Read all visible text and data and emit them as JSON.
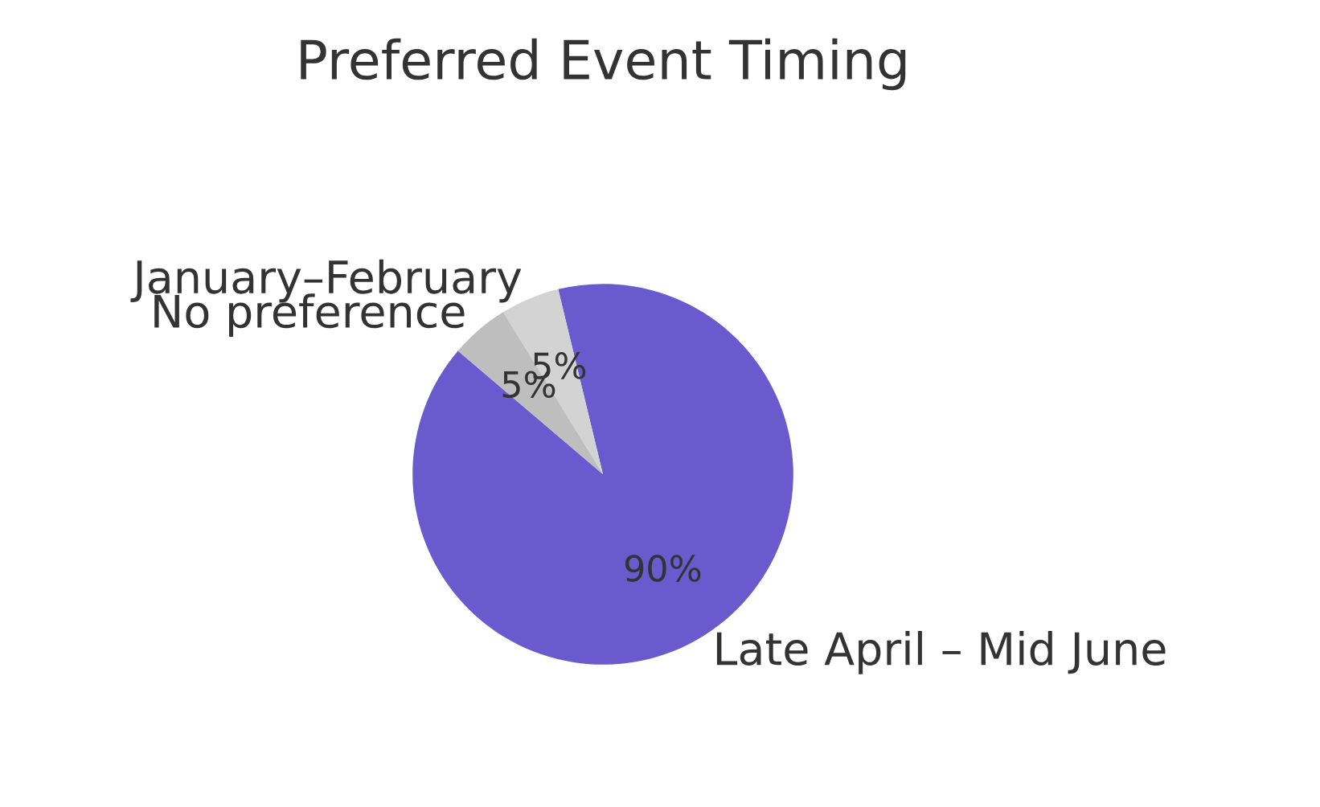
{
  "chart_data": {
    "type": "pie",
    "title": "Preferred Event Timing",
    "categories": [
      "Late April – Mid June",
      "January–February",
      "No preference"
    ],
    "values": [
      90,
      5,
      5
    ],
    "colors": [
      "#6a5acd",
      "#d3d3d3",
      "#bebebe"
    ],
    "value_labels": [
      "90%",
      "5%",
      "5%"
    ]
  }
}
